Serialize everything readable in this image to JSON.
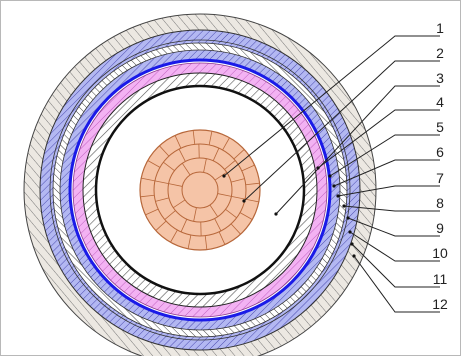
{
  "callouts": [
    {
      "number": "1"
    },
    {
      "number": "2"
    },
    {
      "number": "3"
    },
    {
      "number": "4"
    },
    {
      "number": "5"
    },
    {
      "number": "6"
    },
    {
      "number": "7"
    },
    {
      "number": "8"
    },
    {
      "number": "9"
    },
    {
      "number": "10"
    },
    {
      "number": "11"
    },
    {
      "number": "12"
    }
  ],
  "colors": {
    "conductor_fill": "#f4c3a6",
    "conductor_line": "#c06a3c",
    "semicon_blue": "#1a1ae8",
    "pink_layer": "#f0a6f0",
    "blue_layer": "#a9b0f0",
    "hatch_dark": "#3a3a3a",
    "outer_sheath": "#d6d0c8"
  }
}
